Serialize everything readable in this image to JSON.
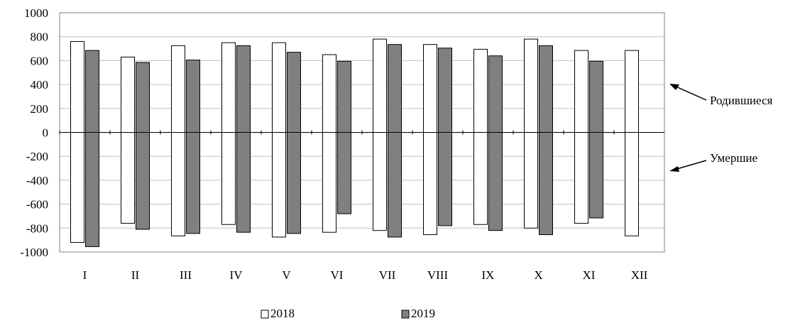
{
  "chart_data": {
    "type": "bar",
    "categories": [
      "I",
      "II",
      "III",
      "IV",
      "V",
      "VI",
      "VII",
      "VIII",
      "IX",
      "X",
      "XI",
      "XII"
    ],
    "series": [
      {
        "name": "2018",
        "color": "#ffffff",
        "births": [
          760,
          630,
          725,
          750,
          750,
          650,
          780,
          735,
          695,
          780,
          685,
          685
        ],
        "deaths": [
          -920,
          -760,
          -865,
          -770,
          -875,
          -835,
          -820,
          -855,
          -770,
          -800,
          -760,
          -865
        ]
      },
      {
        "name": "2019",
        "color": "#808080",
        "births": [
          685,
          585,
          605,
          725,
          670,
          595,
          735,
          705,
          640,
          725,
          595,
          null
        ],
        "deaths": [
          -955,
          -810,
          -845,
          -835,
          -845,
          -680,
          -875,
          -780,
          -820,
          -855,
          -715,
          null
        ]
      }
    ],
    "ylim": [
      -1000,
      1000
    ],
    "yticks": [
      1000,
      800,
      600,
      400,
      200,
      0,
      -200,
      -400,
      -600,
      -800,
      -1000
    ],
    "annotations": [
      "Родившиеся",
      "Умершие"
    ],
    "grid": true,
    "legend_position": "bottom"
  }
}
